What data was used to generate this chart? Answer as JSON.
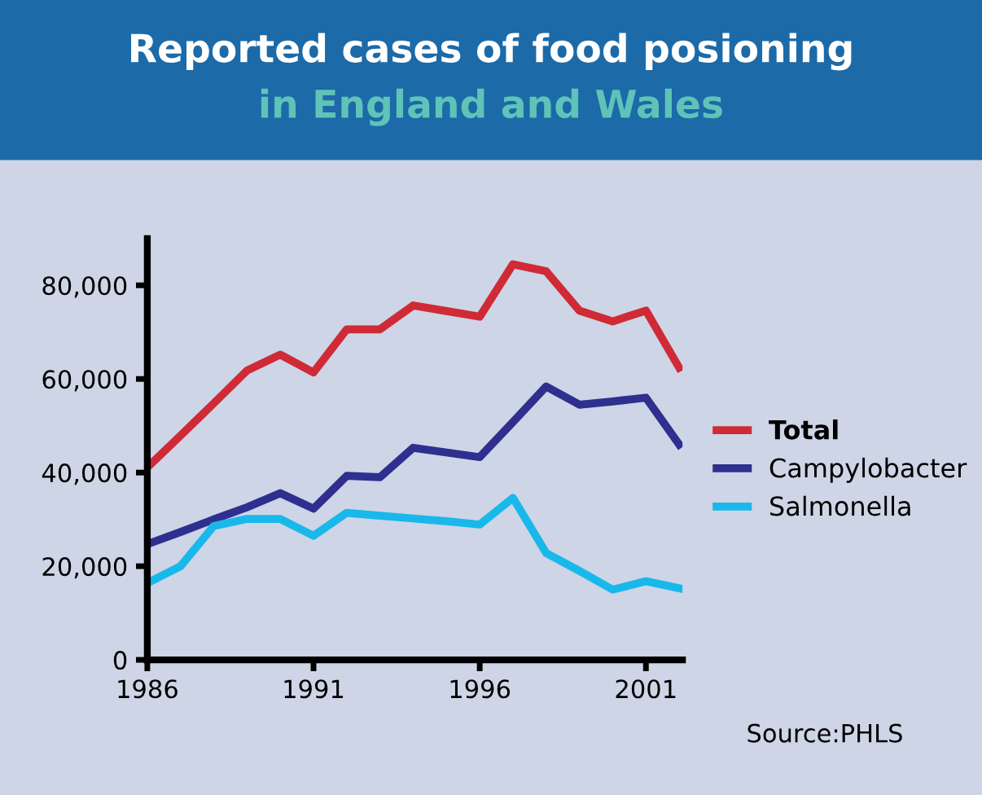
{
  "chart_data": {
    "type": "line",
    "title": "Reported cases of food posioning",
    "subtitle": "in England and Wales",
    "x": [
      1986,
      1987,
      1988,
      1989,
      1990,
      1991,
      1992,
      1993,
      1994,
      1995,
      1996,
      1997,
      1998,
      1999,
      2000,
      2001,
      2002
    ],
    "series": [
      {
        "name": "Total",
        "color": "#d02a36",
        "values": [
          41100,
          47900,
          54800,
          61800,
          65200,
          61400,
          70600,
          70600,
          75700,
          74500,
          73300,
          84500,
          83000,
          74600,
          72300,
          74600,
          62400
        ]
      },
      {
        "name": "Campylobacter",
        "color": "#2e2f8f",
        "values": [
          24700,
          27300,
          30000,
          32600,
          35600,
          32300,
          39300,
          39000,
          45300,
          44300,
          43300,
          50800,
          58400,
          54500,
          55200,
          56000,
          46000
        ]
      },
      {
        "name": "Salmonella",
        "color": "#19b8ea",
        "values": [
          16400,
          20000,
          28600,
          30100,
          30100,
          26500,
          31400,
          30800,
          30200,
          29600,
          28900,
          34600,
          22800,
          19000,
          15000,
          16800,
          15300
        ]
      }
    ],
    "xlim": [
      1986,
      2002.1
    ],
    "xticks": [
      1986,
      1991,
      1996,
      2001
    ],
    "ylim": [
      0,
      90000
    ],
    "yticks": [
      {
        "value": 0,
        "label": "0"
      },
      {
        "value": 20000,
        "label": "20,000"
      },
      {
        "value": 40000,
        "label": "40,000"
      },
      {
        "value": 60000,
        "label": "60,000"
      },
      {
        "value": 80000,
        "label": "80,000"
      }
    ],
    "grid": false,
    "legend": "right",
    "marker": "none",
    "line_style": "solid",
    "annotations": [
      "Source:PHLS"
    ]
  }
}
